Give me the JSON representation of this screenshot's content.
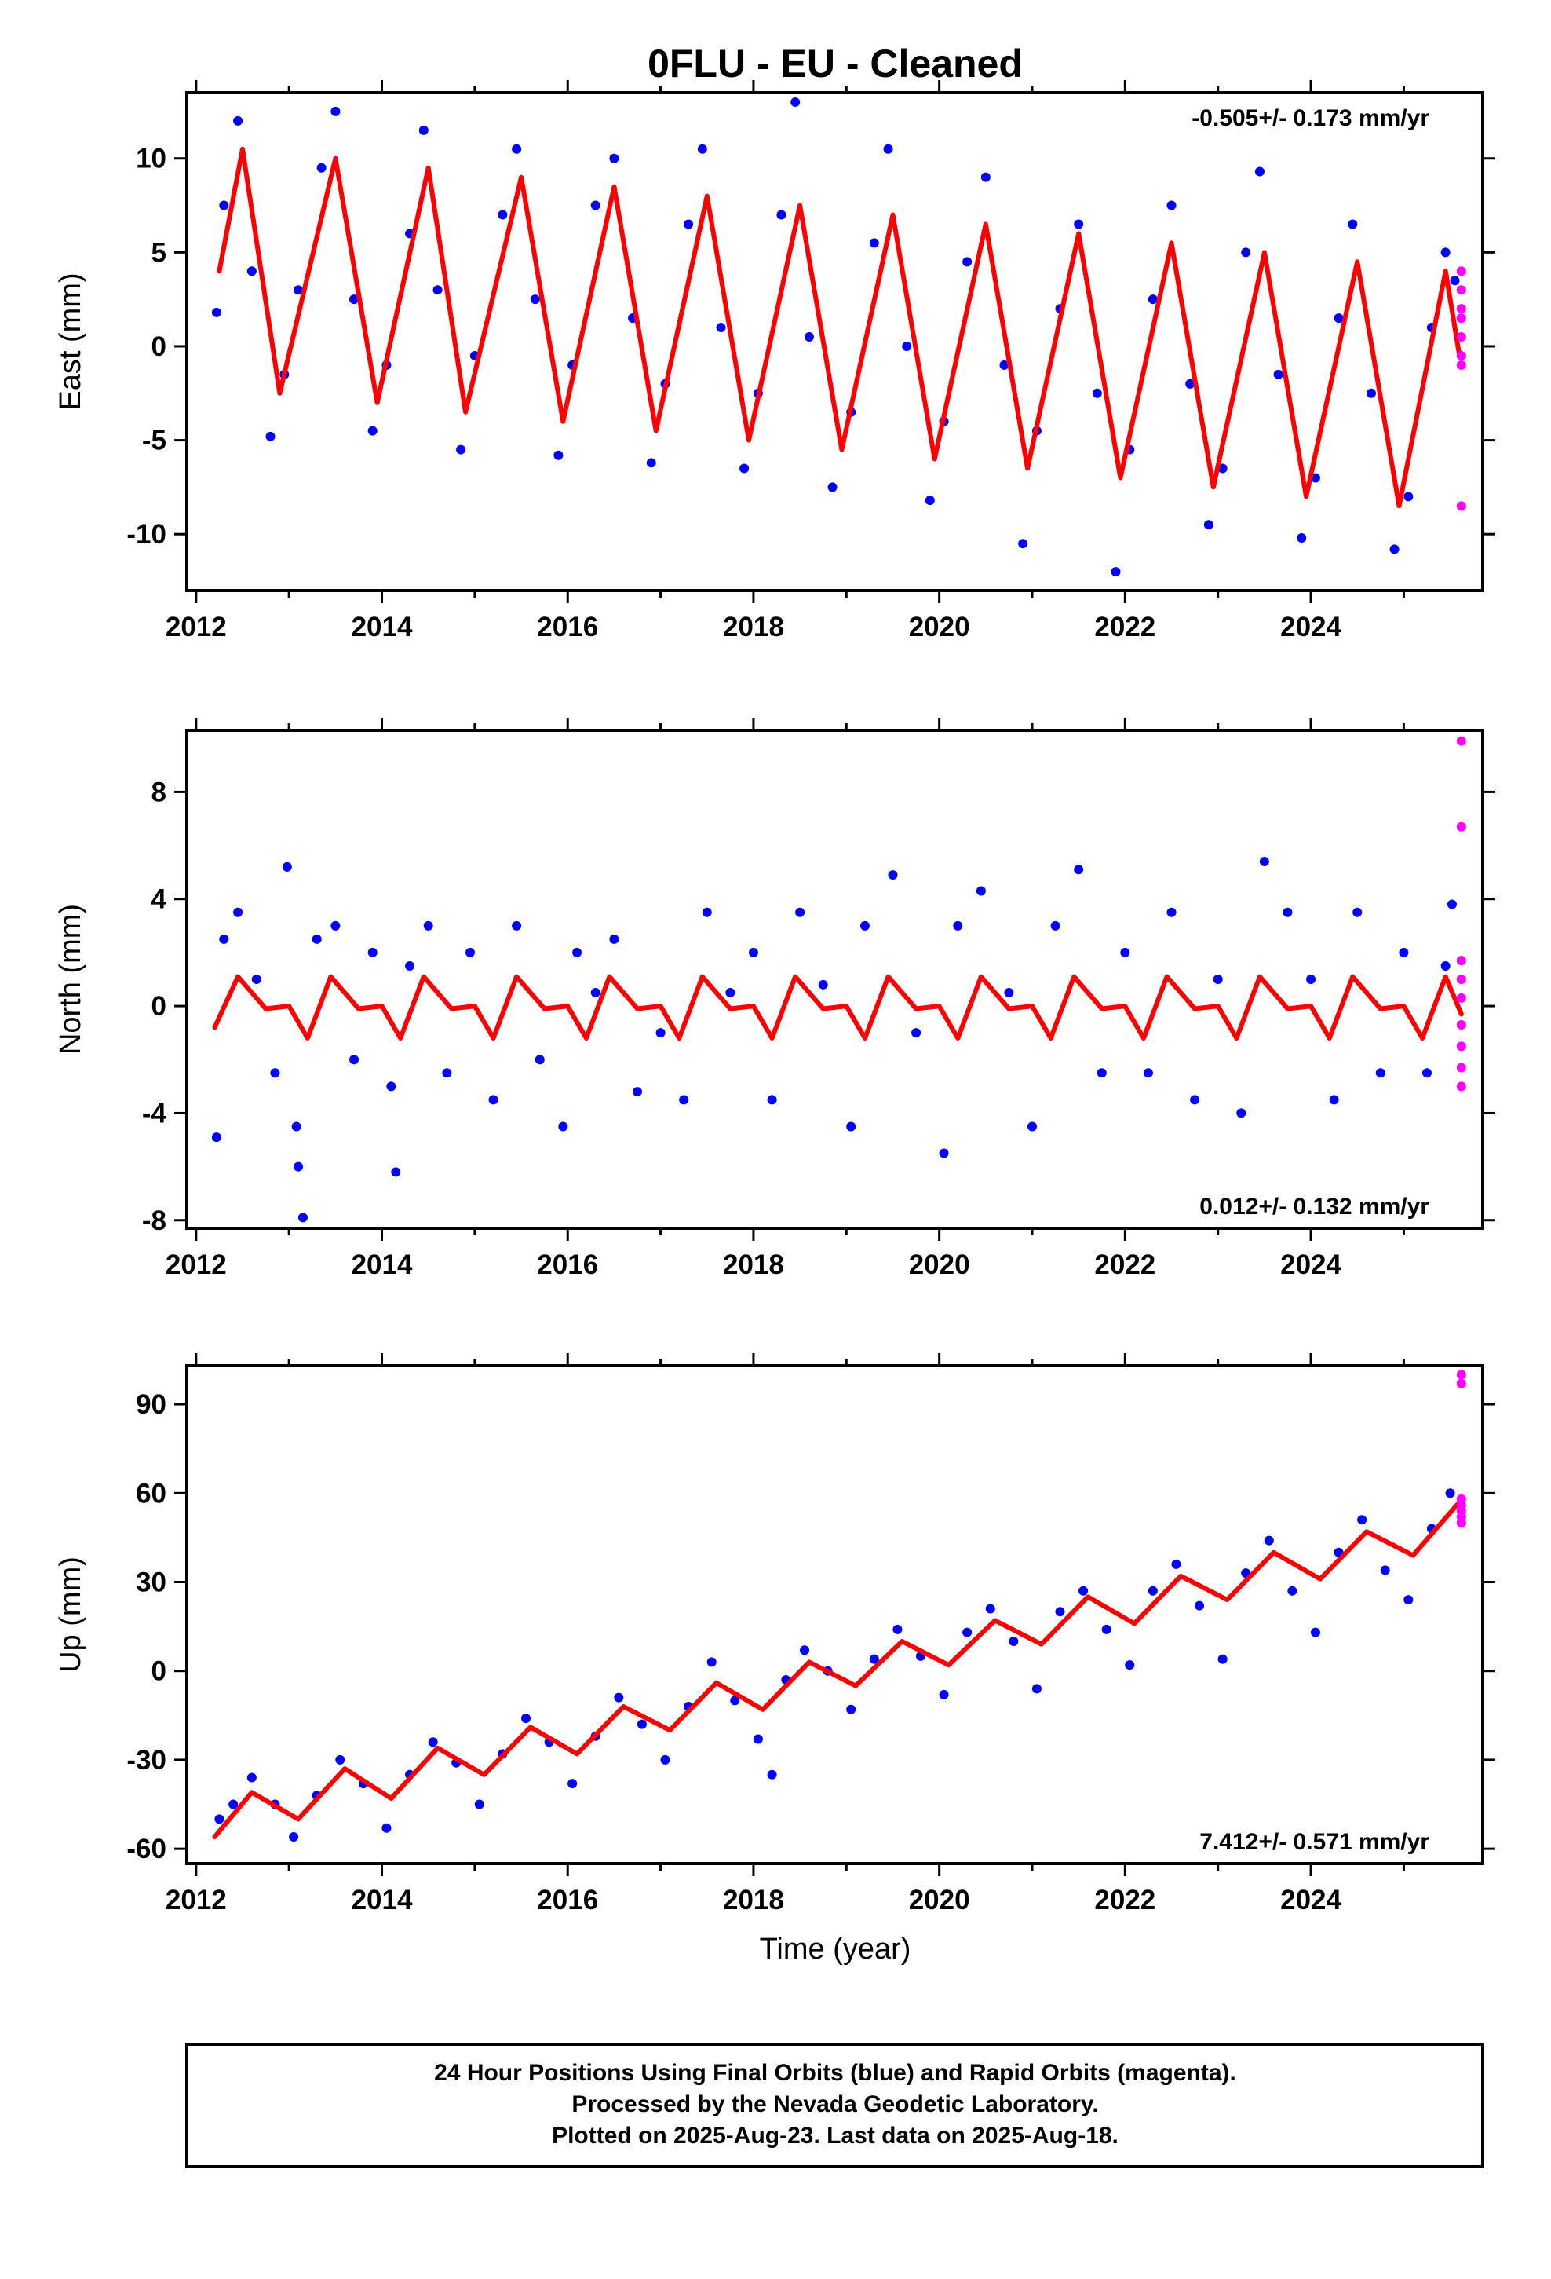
{
  "figure": {
    "title": "0FLU  - EU - Cleaned",
    "xlabel": "Time (year)",
    "caption": [
      "24 Hour Positions Using Final Orbits (blue) and Rapid Orbits (magenta).",
      "Processed by the Nevada Geodetic Laboratory.",
      "Plotted on 2025-Aug-23. Last data on 2025-Aug-18."
    ],
    "colors": {
      "final": "#0000ff",
      "rapid": "#ff00ff",
      "model": "#ff0000",
      "frame": "#000000"
    }
  },
  "chart_data": [
    {
      "type": "scatter",
      "name": "east",
      "ylabel": "East (mm)",
      "rate_label": "-0.505+/- 0.173 mm/yr",
      "xlim": [
        2011.9,
        2025.85
      ],
      "ylim": [
        -13,
        13.5
      ],
      "xticks": [
        "2012",
        "2014",
        "2016",
        "2018",
        "2020",
        "2022",
        "2024"
      ],
      "yticks": [
        "10",
        "5",
        "0",
        "-5",
        "-10"
      ],
      "model": {
        "x": [
          2012.25,
          2012.5,
          2012.9,
          2013.5,
          2013.95,
          2014.5,
          2014.9,
          2015.5,
          2015.95,
          2016.5,
          2016.95,
          2017.5,
          2017.95,
          2018.5,
          2018.95,
          2019.5,
          2019.95,
          2020.5,
          2020.95,
          2021.5,
          2021.95,
          2022.5,
          2022.95,
          2023.5,
          2023.95,
          2024.5,
          2024.95,
          2025.45,
          2025.6
        ],
        "y": [
          4,
          10.5,
          -2.5,
          10,
          -3,
          9.5,
          -3.5,
          9,
          -4,
          8.5,
          -4.5,
          8,
          -5,
          7.5,
          -5.5,
          7,
          -6,
          6.5,
          -6.5,
          6,
          -7,
          5.5,
          -7.5,
          5,
          -8,
          4.5,
          -8.5,
          4,
          -0.5
        ]
      },
      "final": {
        "x": [
          2012.22,
          2012.3,
          2012.45,
          2012.6,
          2012.8,
          2012.95,
          2013.1,
          2013.35,
          2013.5,
          2013.7,
          2013.9,
          2014.05,
          2014.3,
          2014.45,
          2014.6,
          2014.85,
          2015.0,
          2015.3,
          2015.45,
          2015.65,
          2015.9,
          2016.05,
          2016.3,
          2016.5,
          2016.7,
          2016.9,
          2017.05,
          2017.3,
          2017.45,
          2017.65,
          2017.9,
          2018.05,
          2018.3,
          2018.45,
          2018.6,
          2018.85,
          2019.05,
          2019.3,
          2019.45,
          2019.65,
          2019.9,
          2020.05,
          2020.3,
          2020.5,
          2020.7,
          2020.9,
          2021.05,
          2021.3,
          2021.5,
          2021.7,
          2021.9,
          2022.05,
          2022.3,
          2022.5,
          2022.7,
          2022.9,
          2023.05,
          2023.3,
          2023.45,
          2023.65,
          2023.9,
          2024.05,
          2024.3,
          2024.45,
          2024.65,
          2024.9,
          2025.05,
          2025.3,
          2025.45,
          2025.55
        ],
        "y": [
          1.8,
          7.5,
          12,
          4,
          -4.8,
          -1.5,
          3,
          9.5,
          12.5,
          2.5,
          -4.5,
          -1,
          6,
          11.5,
          3,
          -5.5,
          -0.5,
          7,
          10.5,
          2.5,
          -5.8,
          -1,
          7.5,
          10,
          1.5,
          -6.2,
          -2,
          6.5,
          10.5,
          1,
          -6.5,
          -2.5,
          7,
          13,
          0.5,
          -7.5,
          -3.5,
          5.5,
          10.5,
          0,
          -8.2,
          -4,
          4.5,
          9,
          -1,
          -10.5,
          -4.5,
          2,
          6.5,
          -2.5,
          -12,
          -5.5,
          2.5,
          7.5,
          -2,
          -9.5,
          -6.5,
          5,
          9.3,
          -1.5,
          -10.2,
          -7,
          1.5,
          6.5,
          -2.5,
          -10.8,
          -8,
          1,
          5,
          3.5
        ]
      },
      "rapid": {
        "x": [
          2025.62,
          2025.62,
          2025.62,
          2025.62,
          2025.62,
          2025.62,
          2025.62,
          2025.62
        ],
        "y": [
          4,
          3,
          2,
          1.5,
          0.5,
          -0.5,
          -1,
          -8.5
        ]
      }
    },
    {
      "type": "scatter",
      "name": "north",
      "ylabel": "North (mm)",
      "rate_label": "0.012+/- 0.132 mm/yr",
      "xlim": [
        2011.9,
        2025.85
      ],
      "ylim": [
        -8.3,
        10.3
      ],
      "xticks": [
        "2012",
        "2014",
        "2016",
        "2018",
        "2020",
        "2022",
        "2024"
      ],
      "yticks": [
        "8",
        "4",
        "0",
        "-4",
        "-8"
      ],
      "model": {
        "x": [
          2012.2,
          2012.45,
          2012.75,
          2013.0,
          2013.2,
          2013.45,
          2013.75,
          2014.0,
          2014.2,
          2014.45,
          2014.75,
          2015.0,
          2015.2,
          2015.45,
          2015.75,
          2016.0,
          2016.2,
          2016.45,
          2016.75,
          2017.0,
          2017.2,
          2017.45,
          2017.75,
          2018.0,
          2018.2,
          2018.45,
          2018.75,
          2019.0,
          2019.2,
          2019.45,
          2019.75,
          2020.0,
          2020.2,
          2020.45,
          2020.75,
          2021.0,
          2021.2,
          2021.45,
          2021.75,
          2022.0,
          2022.2,
          2022.45,
          2022.75,
          2023.0,
          2023.2,
          2023.45,
          2023.75,
          2024.0,
          2024.2,
          2024.45,
          2024.75,
          2025.0,
          2025.2,
          2025.45,
          2025.62
        ],
        "y": [
          -0.8,
          1.1,
          -0.1,
          0,
          -1.2,
          1.1,
          -0.1,
          0,
          -1.2,
          1.1,
          -0.1,
          0,
          -1.2,
          1.1,
          -0.1,
          0,
          -1.2,
          1.1,
          -0.1,
          0,
          -1.2,
          1.1,
          -0.1,
          0,
          -1.2,
          1.1,
          -0.1,
          0,
          -1.2,
          1.1,
          -0.1,
          0,
          -1.2,
          1.1,
          -0.1,
          0,
          -1.2,
          1.1,
          -0.1,
          0,
          -1.2,
          1.1,
          -0.1,
          0,
          -1.2,
          1.1,
          -0.1,
          0,
          -1.2,
          1.1,
          -0.1,
          0,
          -1.2,
          1.1,
          -0.3
        ]
      },
      "final": {
        "x": [
          2012.22,
          2012.3,
          2012.45,
          2012.65,
          2012.85,
          2012.98,
          2013.08,
          2013.1,
          2013.15,
          2013.3,
          2013.5,
          2013.7,
          2013.9,
          2014.1,
          2014.15,
          2014.3,
          2014.5,
          2014.7,
          2014.95,
          2015.2,
          2015.45,
          2015.7,
          2015.95,
          2016.1,
          2016.3,
          2016.5,
          2016.75,
          2017.0,
          2017.25,
          2017.5,
          2017.75,
          2018.0,
          2018.2,
          2018.5,
          2018.75,
          2019.05,
          2019.2,
          2019.5,
          2019.75,
          2020.05,
          2020.2,
          2020.45,
          2020.75,
          2021.0,
          2021.25,
          2021.5,
          2021.75,
          2022.0,
          2022.25,
          2022.5,
          2022.75,
          2023.0,
          2023.25,
          2023.5,
          2023.75,
          2024.0,
          2024.25,
          2024.5,
          2024.75,
          2025.0,
          2025.25,
          2025.45,
          2025.52
        ],
        "y": [
          -4.9,
          2.5,
          3.5,
          1,
          -2.5,
          5.2,
          -4.5,
          -6,
          -7.9,
          2.5,
          3,
          -2,
          2,
          -3,
          -6.2,
          1.5,
          3,
          -2.5,
          2,
          -3.5,
          3,
          -2,
          -4.5,
          2,
          0.5,
          2.5,
          -3.2,
          -1,
          -3.5,
          3.5,
          0.5,
          2,
          -3.5,
          3.5,
          0.8,
          -4.5,
          3,
          4.9,
          -1,
          -5.5,
          3,
          4.3,
          0.5,
          -4.5,
          3,
          5.1,
          -2.5,
          2,
          -2.5,
          3.5,
          -3.5,
          1,
          -4,
          5.4,
          3.5,
          1,
          -3.5,
          3.5,
          -2.5,
          2,
          -2.5,
          1.5,
          3.8
        ]
      },
      "rapid": {
        "x": [
          2025.62,
          2025.62,
          2025.62,
          2025.62,
          2025.62,
          2025.62,
          2025.62,
          2025.62,
          2025.62
        ],
        "y": [
          9.9,
          6.7,
          1.7,
          1,
          0.3,
          -0.7,
          -1.5,
          -2.3,
          -3
        ]
      }
    },
    {
      "type": "scatter",
      "name": "up",
      "ylabel": "Up (mm)",
      "rate_label": "7.412+/- 0.571 mm/yr",
      "xlim": [
        2011.9,
        2025.85
      ],
      "ylim": [
        -65,
        103
      ],
      "xticks": [
        "2012",
        "2014",
        "2016",
        "2018",
        "2020",
        "2022",
        "2024"
      ],
      "yticks": [
        "90",
        "60",
        "30",
        "0",
        "-30",
        "-60"
      ],
      "model": {
        "x": [
          2012.2,
          2012.6,
          2013.1,
          2013.6,
          2014.1,
          2014.6,
          2015.1,
          2015.6,
          2016.1,
          2016.6,
          2017.1,
          2017.6,
          2018.1,
          2018.6,
          2019.1,
          2019.6,
          2020.1,
          2020.6,
          2021.1,
          2021.6,
          2022.1,
          2022.6,
          2023.1,
          2023.6,
          2024.1,
          2024.6,
          2025.1,
          2025.6
        ],
        "y": [
          -56,
          -41,
          -50,
          -33,
          -43,
          -26,
          -35,
          -19,
          -28,
          -12,
          -20,
          -4,
          -13,
          3,
          -5,
          10,
          2,
          17,
          9,
          25,
          16,
          32,
          24,
          40,
          31,
          47,
          39,
          57
        ]
      },
      "final": {
        "x": [
          2012.25,
          2012.4,
          2012.6,
          2012.85,
          2013.05,
          2013.3,
          2013.55,
          2013.8,
          2014.05,
          2014.3,
          2014.55,
          2014.8,
          2015.05,
          2015.3,
          2015.55,
          2015.8,
          2016.05,
          2016.3,
          2016.55,
          2016.8,
          2017.05,
          2017.3,
          2017.55,
          2017.8,
          2018.05,
          2018.2,
          2018.35,
          2018.55,
          2018.8,
          2019.05,
          2019.3,
          2019.55,
          2019.8,
          2020.05,
          2020.3,
          2020.55,
          2020.8,
          2021.05,
          2021.3,
          2021.55,
          2021.8,
          2022.05,
          2022.3,
          2022.55,
          2022.8,
          2023.05,
          2023.3,
          2023.55,
          2023.8,
          2024.05,
          2024.3,
          2024.55,
          2024.8,
          2025.05,
          2025.3,
          2025.5
        ],
        "y": [
          -50,
          -45,
          -36,
          -45,
          -56,
          -42,
          -30,
          -38,
          -53,
          -35,
          -24,
          -31,
          -45,
          -28,
          -16,
          -24,
          -38,
          -22,
          -9,
          -18,
          -30,
          -12,
          3,
          -10,
          -23,
          -35,
          -3,
          7,
          0,
          -13,
          4,
          14,
          5,
          -8,
          13,
          21,
          10,
          -6,
          20,
          27,
          14,
          2,
          27,
          36,
          22,
          4,
          33,
          44,
          27,
          13,
          40,
          51,
          34,
          24,
          48,
          60
        ]
      },
      "rapid": {
        "x": [
          2025.62,
          2025.62,
          2025.62,
          2025.62,
          2025.62,
          2025.62,
          2025.62
        ],
        "y": [
          100,
          97,
          58,
          56,
          54,
          52,
          50
        ]
      }
    }
  ]
}
